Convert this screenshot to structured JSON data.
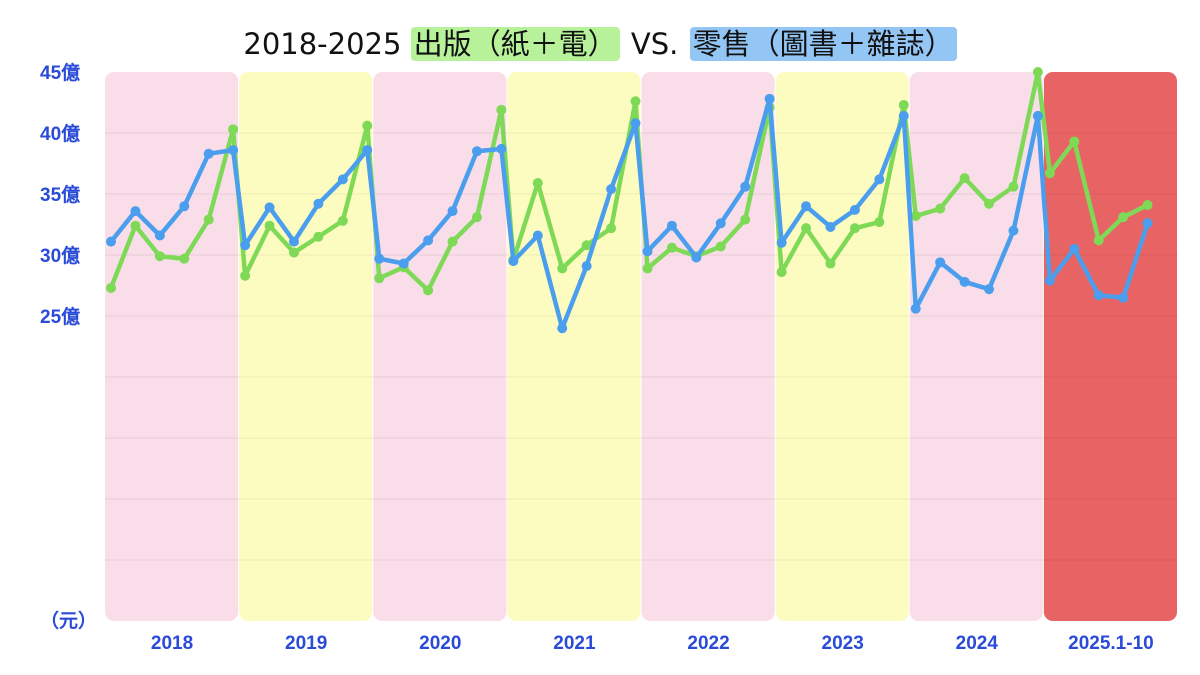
{
  "title": {
    "prefix": "2018-2025",
    "highlight_1": "出版（紙＋電）",
    "middle": "VS.",
    "highlight_2": "零售（圖書＋雜誌）"
  },
  "colors": {
    "publishing": "#7ed957",
    "retail": "#4a9eed",
    "tick_text": "#2a4bd7",
    "band_pink": "#f9dde9",
    "band_yellow": "#fdfcc0",
    "band_red": "#e86464"
  },
  "chart_data": {
    "type": "line",
    "title": "2018-2025 出版（紙＋電） VS. 零售（圖書＋雜誌）",
    "yunit": "（元）",
    "ylim": [
      0,
      45
    ],
    "y_ticks": [
      {
        "value": 25,
        "label": "25億"
      },
      {
        "value": 30,
        "label": "30億"
      },
      {
        "value": 35,
        "label": "35億"
      },
      {
        "value": 40,
        "label": "40億"
      },
      {
        "value": 45,
        "label": "45億"
      }
    ],
    "gridlines": [
      5,
      10,
      15,
      20,
      25,
      30,
      35,
      40
    ],
    "year_bands": [
      "2018",
      "2019",
      "2020",
      "2021",
      "2022",
      "2023",
      "2024",
      "2025.1-10"
    ],
    "points_per_band": 6,
    "series": [
      {
        "key": "publishing",
        "values": [
          27.3,
          32.4,
          29.9,
          29.7,
          32.9,
          40.3,
          28.3,
          32.4,
          30.2,
          31.5,
          32.8,
          40.6,
          28.1,
          29.0,
          27.1,
          31.1,
          33.1,
          41.9,
          29.6,
          35.9,
          28.9,
          30.8,
          32.2,
          42.6,
          28.9,
          30.6,
          29.9,
          30.7,
          32.9,
          42.1,
          28.6,
          32.2,
          29.3,
          32.2,
          32.7,
          42.3,
          33.2,
          33.8,
          36.3,
          34.2,
          35.6,
          45.0,
          36.7,
          39.3,
          31.2,
          33.1,
          34.1
        ]
      },
      {
        "key": "retail",
        "values": [
          31.1,
          33.6,
          31.6,
          34.0,
          38.3,
          38.6,
          30.8,
          33.9,
          31.1,
          34.2,
          36.2,
          38.6,
          29.7,
          29.3,
          31.2,
          33.6,
          38.5,
          38.7,
          29.5,
          31.6,
          24.0,
          29.1,
          35.4,
          40.8,
          30.3,
          32.4,
          29.8,
          32.6,
          35.6,
          42.8,
          31.0,
          34.0,
          32.3,
          33.7,
          36.2,
          41.4,
          25.6,
          29.4,
          27.8,
          27.2,
          32.0,
          41.4,
          27.9,
          30.5,
          26.7,
          26.5,
          32.6
        ]
      }
    ]
  }
}
